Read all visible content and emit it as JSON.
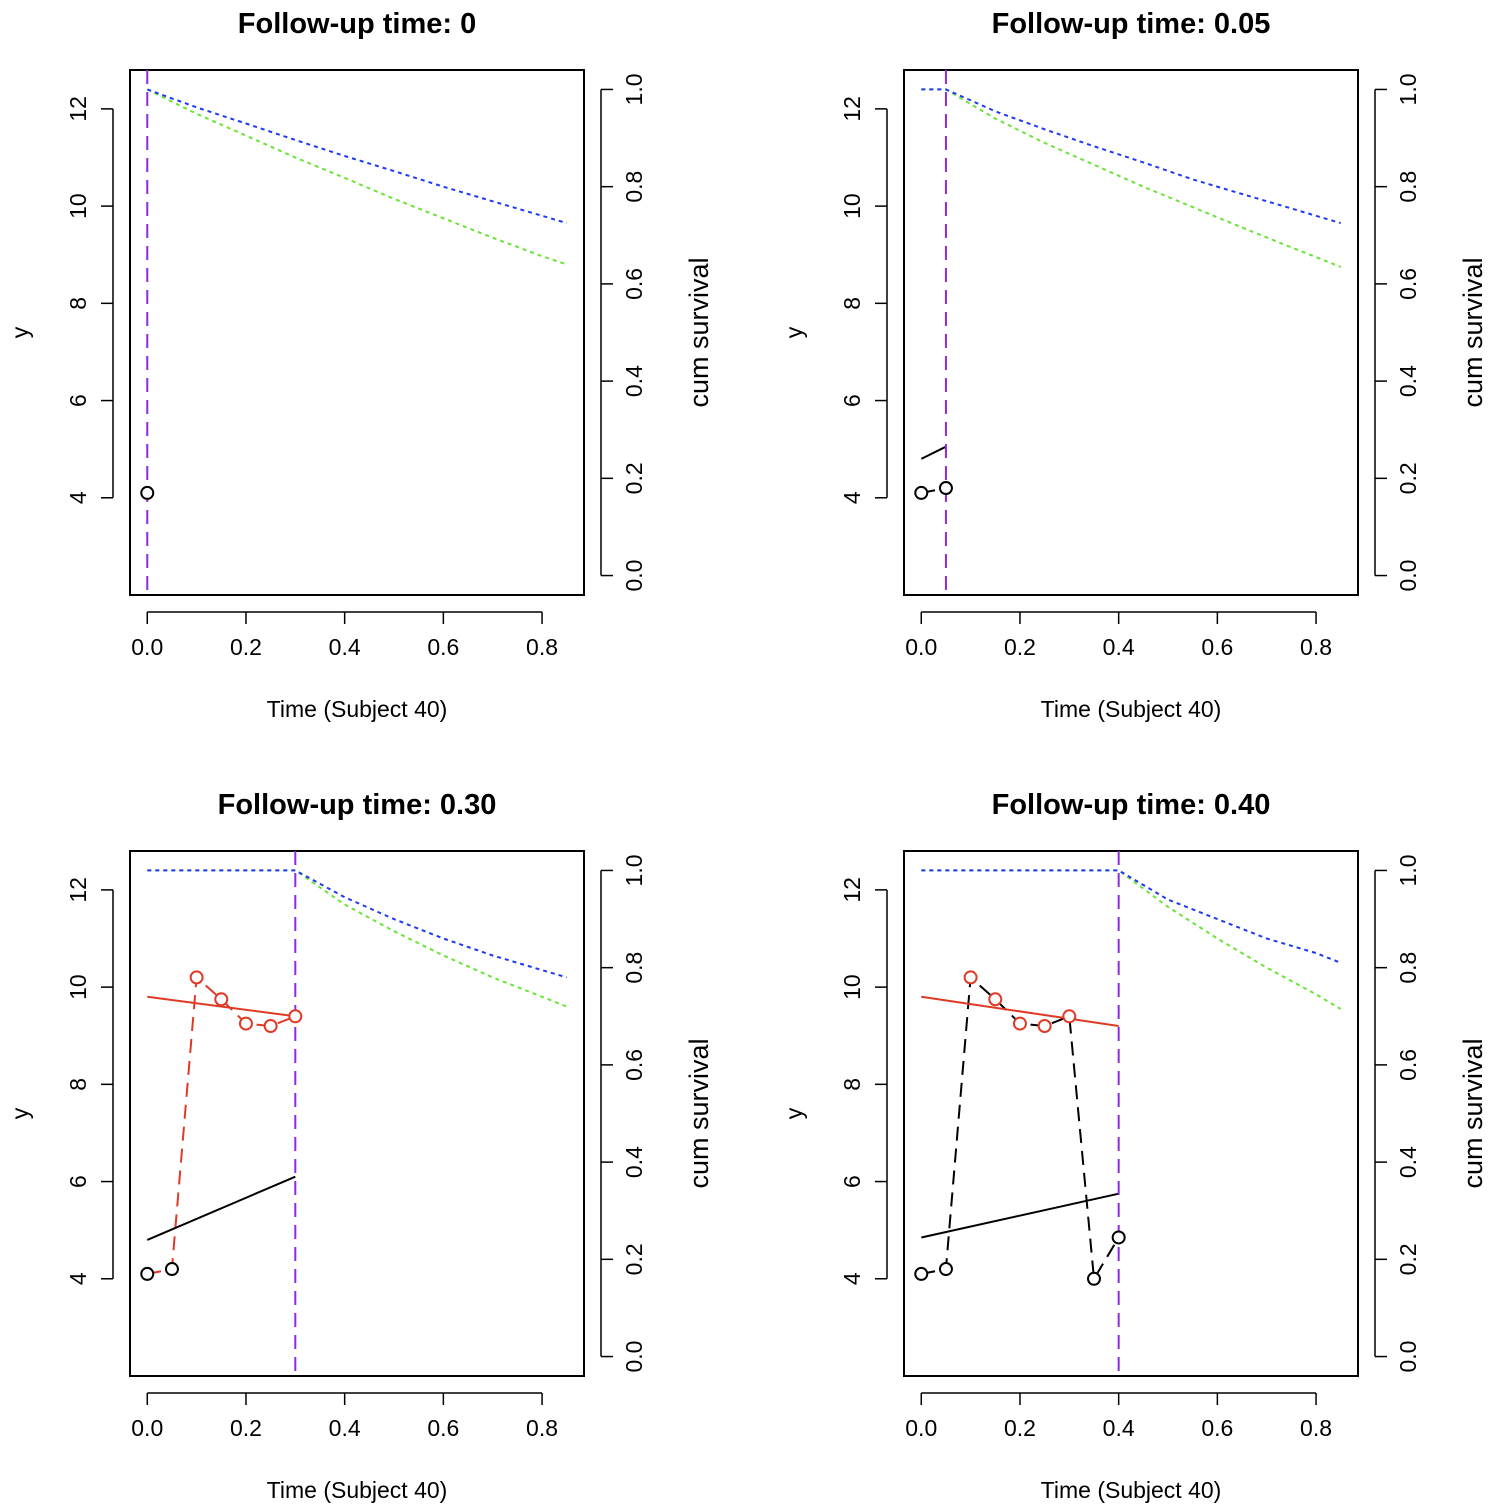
{
  "chart_data": [
    {
      "type": "line",
      "title": "Follow-up time: 0",
      "followup": 0,
      "xlabel": "Time (Subject 40)",
      "ylabel": "y",
      "y2label": "cum survival",
      "xlim": [
        -0.035,
        0.885
      ],
      "ylim": [
        2.0,
        12.8
      ],
      "y2lim": [
        -0.04,
        1.04
      ],
      "xticks": [
        "0.0",
        "0.2",
        "0.4",
        "0.6",
        "0.8"
      ],
      "yticks": [
        "4",
        "6",
        "8",
        "10",
        "12"
      ],
      "y2ticks": [
        "0.0",
        "0.2",
        "0.4",
        "0.6",
        "0.8",
        "1.0"
      ],
      "obs_black": [
        {
          "x": 0,
          "y": 4.1
        }
      ],
      "obs_red": [],
      "fit_black": null,
      "fit_red": null,
      "obs_black_dashed": false,
      "surv_blue": {
        "x": [
          0,
          0.1,
          0.2,
          0.3,
          0.4,
          0.5,
          0.6,
          0.7,
          0.8,
          0.85
        ],
        "y": [
          1.0,
          0.963,
          0.93,
          0.896,
          0.863,
          0.832,
          0.8,
          0.77,
          0.74,
          0.725
        ]
      },
      "surv_green": {
        "x": [
          0,
          0.1,
          0.2,
          0.3,
          0.4,
          0.5,
          0.6,
          0.7,
          0.8,
          0.85
        ],
        "y": [
          1.0,
          0.95,
          0.905,
          0.86,
          0.818,
          0.775,
          0.735,
          0.695,
          0.657,
          0.64
        ]
      }
    },
    {
      "type": "line",
      "title": "Follow-up time: 0.05",
      "followup": 0.05,
      "xlabel": "Time (Subject 40)",
      "ylabel": "y",
      "y2label": "cum survival",
      "xlim": [
        -0.035,
        0.885
      ],
      "ylim": [
        2.0,
        12.8
      ],
      "y2lim": [
        -0.04,
        1.04
      ],
      "xticks": [
        "0.0",
        "0.2",
        "0.4",
        "0.6",
        "0.8"
      ],
      "yticks": [
        "4",
        "6",
        "8",
        "10",
        "12"
      ],
      "y2ticks": [
        "0.0",
        "0.2",
        "0.4",
        "0.6",
        "0.8",
        "1.0"
      ],
      "obs_black": [
        {
          "x": 0,
          "y": 4.1
        },
        {
          "x": 0.05,
          "y": 4.2
        }
      ],
      "obs_red": [],
      "fit_black": {
        "x": [
          0,
          0.05
        ],
        "y": [
          4.8,
          5.05
        ]
      },
      "fit_red": null,
      "obs_black_dashed": false,
      "surv_blue": {
        "x": [
          0,
          0.05,
          0.15,
          0.25,
          0.35,
          0.45,
          0.55,
          0.65,
          0.75,
          0.85
        ],
        "y": [
          1.0,
          1.0,
          0.955,
          0.918,
          0.883,
          0.85,
          0.815,
          0.785,
          0.755,
          0.725
        ]
      },
      "surv_green": {
        "x": [
          0,
          0.05,
          0.15,
          0.25,
          0.35,
          0.45,
          0.55,
          0.65,
          0.75,
          0.85
        ],
        "y": [
          1.0,
          1.0,
          0.94,
          0.89,
          0.845,
          0.8,
          0.758,
          0.716,
          0.675,
          0.635
        ]
      }
    },
    {
      "type": "line",
      "title": "Follow-up time: 0.30",
      "followup": 0.3,
      "xlabel": "Time (Subject 40)",
      "ylabel": "y",
      "y2label": "cum survival",
      "xlim": [
        -0.035,
        0.885
      ],
      "ylim": [
        2.0,
        12.8
      ],
      "y2lim": [
        -0.04,
        1.04
      ],
      "xticks": [
        "0.0",
        "0.2",
        "0.4",
        "0.6",
        "0.8"
      ],
      "yticks": [
        "4",
        "6",
        "8",
        "10",
        "12"
      ],
      "y2ticks": [
        "0.0",
        "0.2",
        "0.4",
        "0.6",
        "0.8",
        "1.0"
      ],
      "obs_black": [
        {
          "x": 0,
          "y": 4.1
        },
        {
          "x": 0.05,
          "y": 4.2
        }
      ],
      "obs_red": [
        {
          "x": 0.1,
          "y": 10.2
        },
        {
          "x": 0.15,
          "y": 9.75
        },
        {
          "x": 0.2,
          "y": 9.25
        },
        {
          "x": 0.25,
          "y": 9.2
        },
        {
          "x": 0.3,
          "y": 9.4
        }
      ],
      "red_dashed_path": [
        {
          "x": 0,
          "y": 4.1
        },
        {
          "x": 0.05,
          "y": 4.2
        },
        {
          "x": 0.1,
          "y": 10.2
        },
        {
          "x": 0.15,
          "y": 9.75
        },
        {
          "x": 0.2,
          "y": 9.25
        },
        {
          "x": 0.25,
          "y": 9.2
        },
        {
          "x": 0.3,
          "y": 9.4
        }
      ],
      "fit_black": {
        "x": [
          0,
          0.3
        ],
        "y": [
          4.8,
          6.1
        ]
      },
      "fit_red": {
        "x": [
          0,
          0.3
        ],
        "y": [
          9.8,
          9.4
        ]
      },
      "obs_black_dashed": false,
      "surv_blue": {
        "x": [
          0,
          0.3,
          0.4,
          0.5,
          0.6,
          0.7,
          0.8,
          0.85
        ],
        "y": [
          1.0,
          1.0,
          0.945,
          0.9,
          0.86,
          0.825,
          0.795,
          0.78
        ]
      },
      "surv_green": {
        "x": [
          0,
          0.3,
          0.4,
          0.5,
          0.6,
          0.7,
          0.8,
          0.85
        ],
        "y": [
          1.0,
          1.0,
          0.93,
          0.875,
          0.825,
          0.78,
          0.74,
          0.72
        ]
      }
    },
    {
      "type": "line",
      "title": "Follow-up time: 0.40",
      "followup": 0.4,
      "xlabel": "Time (Subject 40)",
      "ylabel": "y",
      "y2label": "cum survival",
      "xlim": [
        -0.035,
        0.885
      ],
      "ylim": [
        2.0,
        12.8
      ],
      "y2lim": [
        -0.04,
        1.04
      ],
      "xticks": [
        "0.0",
        "0.2",
        "0.4",
        "0.6",
        "0.8"
      ],
      "yticks": [
        "4",
        "6",
        "8",
        "10",
        "12"
      ],
      "y2ticks": [
        "0.0",
        "0.2",
        "0.4",
        "0.6",
        "0.8",
        "1.0"
      ],
      "obs_black": [
        {
          "x": 0,
          "y": 4.1
        },
        {
          "x": 0.05,
          "y": 4.2
        },
        {
          "x": 0.35,
          "y": 4.0
        },
        {
          "x": 0.4,
          "y": 4.85
        }
      ],
      "obs_red": [
        {
          "x": 0.1,
          "y": 10.2
        },
        {
          "x": 0.15,
          "y": 9.75
        },
        {
          "x": 0.2,
          "y": 9.25
        },
        {
          "x": 0.25,
          "y": 9.2
        },
        {
          "x": 0.3,
          "y": 9.4
        }
      ],
      "black_dashed_path": [
        {
          "x": 0,
          "y": 4.1
        },
        {
          "x": 0.05,
          "y": 4.2
        },
        {
          "x": 0.1,
          "y": 10.2
        },
        {
          "x": 0.15,
          "y": 9.75
        },
        {
          "x": 0.2,
          "y": 9.25
        },
        {
          "x": 0.25,
          "y": 9.2
        },
        {
          "x": 0.3,
          "y": 9.4
        },
        {
          "x": 0.35,
          "y": 4.0
        },
        {
          "x": 0.4,
          "y": 4.85
        }
      ],
      "fit_black": {
        "x": [
          0,
          0.4
        ],
        "y": [
          4.85,
          5.75
        ]
      },
      "fit_red": {
        "x": [
          0,
          0.4
        ],
        "y": [
          9.8,
          9.2
        ]
      },
      "obs_black_dashed": true,
      "surv_blue": {
        "x": [
          0,
          0.4,
          0.5,
          0.6,
          0.7,
          0.8,
          0.85
        ],
        "y": [
          1.0,
          1.0,
          0.94,
          0.9,
          0.86,
          0.83,
          0.81
        ]
      },
      "surv_green": {
        "x": [
          0,
          0.4,
          0.5,
          0.6,
          0.7,
          0.8,
          0.85
        ],
        "y": [
          1.0,
          1.0,
          0.925,
          0.86,
          0.8,
          0.745,
          0.715
        ]
      }
    }
  ],
  "colors": {
    "black": "#000000",
    "red": "#DF3A26",
    "blue": "#1F3AF5",
    "green": "#6BE43A",
    "purple": "#8A2BE2"
  }
}
